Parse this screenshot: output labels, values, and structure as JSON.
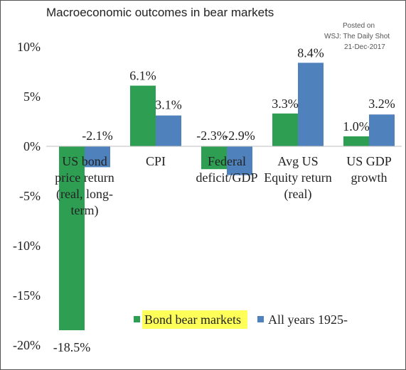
{
  "header": {
    "title": "Macroeconomic outcomes in bear markets",
    "credit_line1": "Posted on",
    "credit_line2": "WSJ: The Daily Shot",
    "credit_line3": "21-Dec-2017"
  },
  "colors": {
    "bond_bear": "#2e9e53",
    "all_years": "#4f81bd",
    "legend_highlight": "#ffff5a",
    "text": "#222222"
  },
  "chart_data": {
    "type": "bar",
    "title": "Macroeconomic outcomes in bear markets",
    "categories": [
      [
        "US bond",
        "price return",
        "(real, long-",
        "term)"
      ],
      [
        "CPI"
      ],
      [
        "Federal",
        "deficit/GDP"
      ],
      [
        "Avg US",
        "Equity return",
        "(real)"
      ],
      [
        "US GDP",
        "growth"
      ]
    ],
    "series": [
      {
        "name": "Bond bear markets",
        "values": [
          -18.5,
          6.1,
          -2.3,
          3.3,
          1.0
        ],
        "labels": [
          "-18.5%",
          "6.1%",
          "-2.3%",
          "3.3%",
          "1.0%"
        ]
      },
      {
        "name": "All years 1925-",
        "values": [
          -2.1,
          3.1,
          -2.9,
          8.4,
          3.2
        ],
        "labels": [
          "-2.1%",
          "3.1%",
          "-2.9%",
          "8.4%",
          "3.2%"
        ]
      }
    ],
    "ylim": [
      -20,
      10
    ],
    "yticks": [
      10,
      5,
      0,
      -5,
      -10,
      -15,
      -20
    ],
    "ytick_labels": [
      "10%",
      "5%",
      "0%",
      "-5%",
      "-10%",
      "-15%",
      "-20%"
    ],
    "grid": false,
    "legend_position": "bottom-right"
  }
}
